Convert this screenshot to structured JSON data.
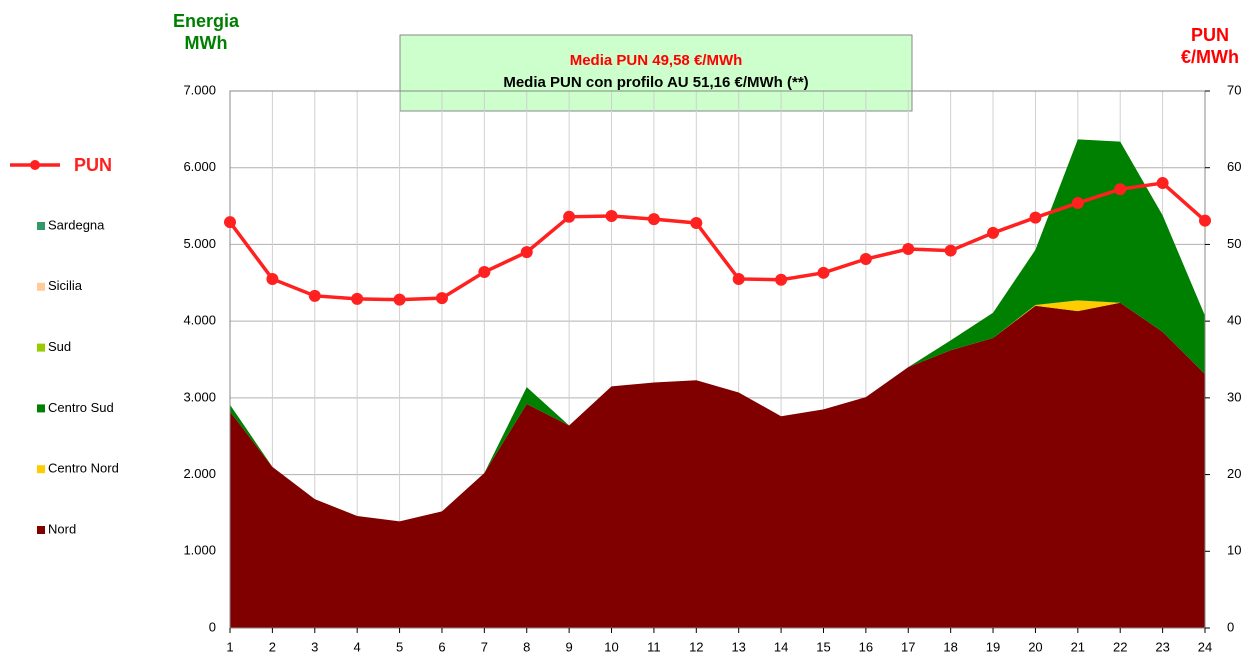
{
  "chart_data": {
    "type": "stacked_area_line",
    "y_label": [
      "Energia",
      "MWh"
    ],
    "y2_label": [
      "PUN",
      "€/MWh"
    ],
    "annotations": [
      "Media PUN 49,58  €/MWh",
      "Media PUN con profilo AU 51,16  €/MWh (**)"
    ],
    "categories": [
      "1",
      "2",
      "3",
      "4",
      "5",
      "6",
      "7",
      "8",
      "9",
      "10",
      "11",
      "12",
      "13",
      "14",
      "15",
      "16",
      "17",
      "18",
      "19",
      "20",
      "21",
      "22",
      "23",
      "24"
    ],
    "ylim": [
      0,
      7000
    ],
    "yticks": [
      {
        "value": 0,
        "label": "0"
      },
      {
        "value": 1000,
        "label": "1.000"
      },
      {
        "value": 2000,
        "label": "2.000"
      },
      {
        "value": 3000,
        "label": "3.000"
      },
      {
        "value": 4000,
        "label": "4.000"
      },
      {
        "value": 5000,
        "label": "5.000"
      },
      {
        "value": 6000,
        "label": "6.000"
      },
      {
        "value": 7000,
        "label": "7.000"
      }
    ],
    "y2lim": [
      0,
      70
    ],
    "y2ticks": [
      0,
      10,
      20,
      30,
      40,
      50,
      60,
      70
    ],
    "grid": true,
    "legend": "left",
    "series": [
      {
        "name": "PUN",
        "color": "#ff2020",
        "axis": "y2",
        "type": "line",
        "values": [
          52.9,
          45.5,
          43.3,
          42.9,
          42.8,
          43.0,
          46.4,
          49.0,
          53.6,
          53.7,
          53.3,
          52.8,
          45.5,
          45.4,
          46.3,
          48.1,
          49.4,
          49.2,
          51.5,
          53.5,
          55.4,
          57.2,
          58.0,
          53.1
        ]
      },
      {
        "name": "Sardegna",
        "color": "#339966",
        "values": [
          0,
          0,
          0,
          0,
          0,
          0,
          0,
          0,
          0,
          0,
          0,
          0,
          0,
          0,
          0,
          0,
          0,
          0,
          0,
          0,
          0,
          0,
          0,
          0
        ]
      },
      {
        "name": "Sicilia",
        "color": "#ffcc99",
        "values": [
          0,
          0,
          0,
          0,
          0,
          0,
          0,
          0,
          0,
          0,
          0,
          0,
          0,
          0,
          0,
          0,
          0,
          0,
          0,
          0,
          0,
          0,
          0,
          0
        ]
      },
      {
        "name": "Sud",
        "color": "#99cc00",
        "values": [
          0,
          0,
          0,
          0,
          0,
          0,
          0,
          0,
          0,
          0,
          0,
          0,
          0,
          0,
          0,
          0,
          0,
          0,
          0,
          0,
          0,
          0,
          0,
          0
        ]
      },
      {
        "name": "Centro Sud",
        "color": "#008000",
        "values": [
          90,
          0,
          0,
          0,
          0,
          0,
          0,
          220,
          0,
          0,
          0,
          0,
          0,
          0,
          0,
          0,
          0,
          130,
          330,
          720,
          2100,
          2100,
          1520,
          760
        ]
      },
      {
        "name": "Centro Nord",
        "color": "#ffcc00",
        "values": [
          0,
          0,
          0,
          0,
          0,
          0,
          0,
          0,
          0,
          0,
          0,
          0,
          0,
          0,
          0,
          0,
          0,
          0,
          0,
          10,
          140,
          0,
          0,
          0
        ]
      },
      {
        "name": "Nord",
        "color": "#800000",
        "values": [
          2820,
          2100,
          1680,
          1460,
          1390,
          1520,
          2020,
          2920,
          2640,
          3150,
          3200,
          3230,
          3070,
          2760,
          2850,
          3010,
          3400,
          3620,
          3780,
          4200,
          4130,
          4240,
          3860,
          3310
        ]
      }
    ]
  }
}
